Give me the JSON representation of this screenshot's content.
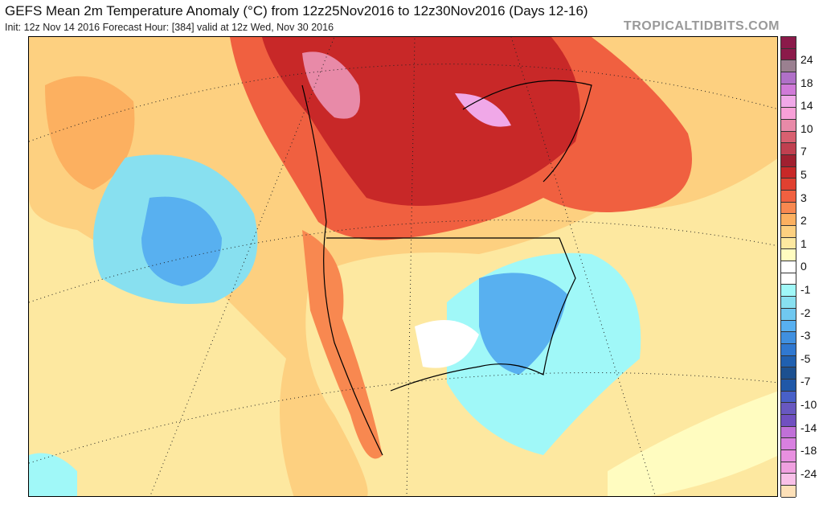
{
  "header": {
    "title": "GEFS Mean 2m Temperature Anomaly (°C) from 12z25Nov2016 to 12z30Nov2016 (Days 12-16)",
    "subtitle": "Init: 12z Nov 14 2016   Forecast Hour: [384]   valid at 12z Wed, Nov 30 2016",
    "brand": "TROPICALTIDBITS.COM"
  },
  "colorbar": {
    "unit": "°C",
    "labels": [
      "24",
      "18",
      "14",
      "10",
      "7",
      "5",
      "3",
      "2",
      "1",
      "0",
      "-1",
      "-2",
      "-3",
      "-5",
      "-7",
      "-10",
      "-14",
      "-18",
      "-24"
    ],
    "colors": [
      "#8b1a4a",
      "#8b1a4a",
      "#9a8090",
      "#b070c8",
      "#d07ad8",
      "#f0a8e8",
      "#f8a0d8",
      "#e88aa8",
      "#d86070",
      "#c04050",
      "#a02030",
      "#c82828",
      "#e04030",
      "#f06040",
      "#f88850",
      "#fcb060",
      "#fdd080",
      "#fde8a0",
      "#fffcc0",
      "#ffffff",
      "#ffffff",
      "#a0f8f8",
      "#88e0f0",
      "#70c8f0",
      "#58b0f0",
      "#4090e0",
      "#3078d0",
      "#2060b0",
      "#1c5090",
      "#2058a8",
      "#4860c8",
      "#6858c0",
      "#7050c0",
      "#c070d8",
      "#d880e0",
      "#e890e0",
      "#f0a0e0",
      "#f8c0e8",
      "#fde0b8"
    ]
  }
}
